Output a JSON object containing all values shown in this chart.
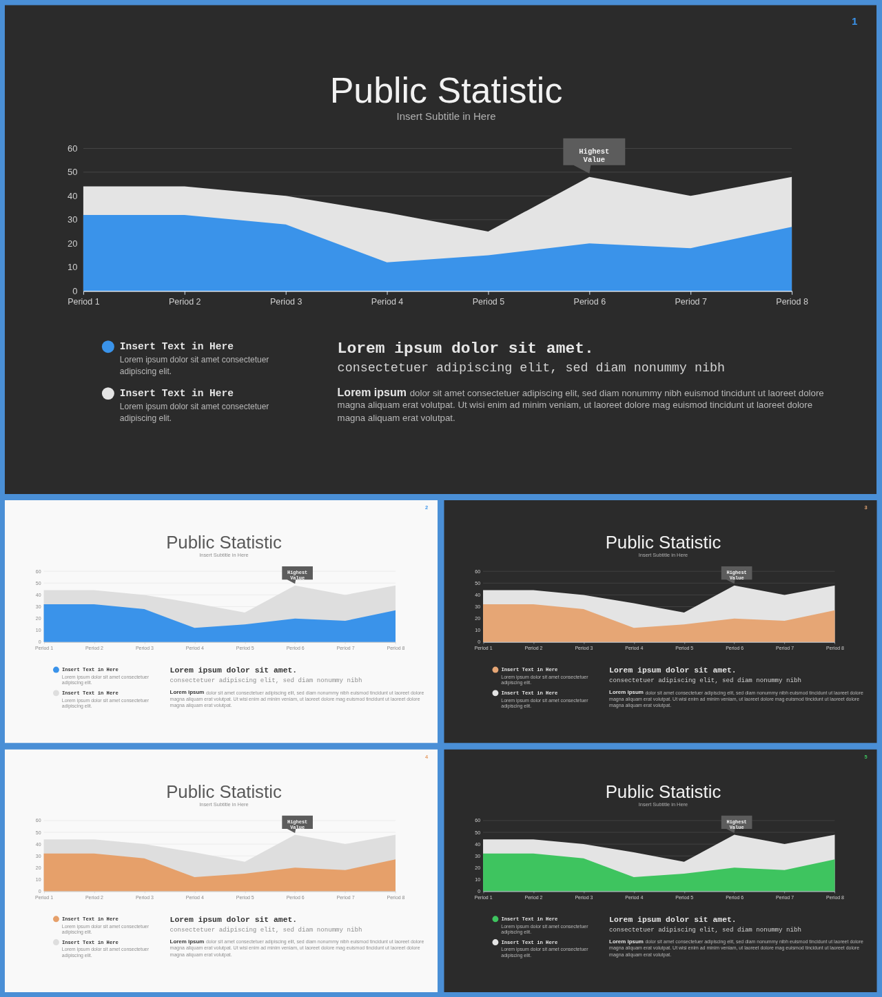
{
  "chart_data": [
    {
      "type": "area",
      "title": "Public Statistic",
      "subtitle": "Insert Subtitle in Here",
      "categories": [
        "Period 1",
        "Period 2",
        "Period 3",
        "Period 4",
        "Period 5",
        "Period 6",
        "Period 7",
        "Period 8"
      ],
      "series": [
        {
          "name": "Insert Text in Here",
          "color": "#3a93ea",
          "values": [
            32,
            32,
            28,
            12,
            15,
            20,
            18,
            27
          ]
        },
        {
          "name": "Insert Text in Here",
          "color": "#e4e4e4",
          "values": [
            44,
            44,
            40,
            33,
            25,
            48,
            40,
            48
          ]
        }
      ],
      "ylim": [
        0,
        60
      ],
      "yticks": [
        0,
        10,
        20,
        30,
        40,
        50,
        60
      ],
      "grid": "y",
      "legend": "bottom left",
      "annotations": [
        {
          "text": "Highest Value",
          "x": "Period 6",
          "y": 48
        },
        "1",
        "Lorem ipsum dolor sit amet consectetuer\nadipiscing elit.",
        "Lorem ipsum dolor sit amet consectetuer\nadipiscing elit.",
        "Lorem ipsum dolor sit amet.",
        "consectetuer adipiscing elit, sed diam nonummy nibh",
        "Lorem ipsum dolor sit amet consectetuer adipiscing elit, sed diam nonummy nibh euismod tincidunt ut laoreet dolore\nmagna aliquam erat volutpat. Ut wisi enim ad minim veniam, ut laoreet dolore mag euismod tincidunt ut laoreet dolore\nmagna aliquam erat volutpat."
      ]
    },
    {
      "type": "area",
      "title": "Public Statistic",
      "subtitle": "Insert Subtitle in Here",
      "categories": [
        "Period 1",
        "Period 2",
        "Period 3",
        "Period 4",
        "Period 5",
        "Period 6",
        "Period 7",
        "Period 8"
      ],
      "series": [
        {
          "name": "Insert Text in Here",
          "color": "#3a93ea",
          "values": [
            32,
            32,
            28,
            12,
            15,
            20,
            18,
            27
          ]
        },
        {
          "name": "Insert Text in Here",
          "color": "#dedede",
          "values": [
            44,
            44,
            40,
            33,
            25,
            48,
            40,
            48
          ]
        }
      ],
      "ylim": [
        0,
        60
      ],
      "yticks": [
        0,
        10,
        20,
        30,
        40,
        50,
        60
      ],
      "grid": "y",
      "legend": "bottom left",
      "annotations": [
        {
          "text": "Highest Value",
          "x": "Period 6",
          "y": 48
        },
        "2",
        "Lorem ipsum dolor sit amet consectetuer\nadipiscing elit.",
        "Lorem ipsum dolor sit amet consectetuer\nadipiscing elit.",
        "Lorem ipsum dolor sit amet.",
        "consectetuer adipiscing elit, sed diam nonummy nibh",
        "Lorem ipsum dolor sit amet consectetuer adipiscing elit, sed diam nonummy nibh euismod tincidunt ut laoreet dolore\nmagna aliquam erat volutpat. Ut wisi enim ad minim veniam, ut laoreet dolore mag euismod tincidunt ut laoreet dolore\nmagna aliquam erat volutpat."
      ]
    },
    {
      "type": "area",
      "title": "Public Statistic",
      "subtitle": "Insert Subtitle in Here",
      "categories": [
        "Period 1",
        "Period 2",
        "Period 3",
        "Period 4",
        "Period 5",
        "Period 6",
        "Period 7",
        "Period 8"
      ],
      "series": [
        {
          "name": "Insert Text in Here",
          "color": "#e6a675",
          "values": [
            32,
            32,
            28,
            12,
            15,
            20,
            18,
            27
          ]
        },
        {
          "name": "Insert Text in Here",
          "color": "#e4e4e4",
          "values": [
            44,
            44,
            40,
            33,
            25,
            48,
            40,
            48
          ]
        }
      ],
      "ylim": [
        0,
        60
      ],
      "yticks": [
        0,
        10,
        20,
        30,
        40,
        50,
        60
      ],
      "grid": "y",
      "legend": "bottom left",
      "annotations": [
        {
          "text": "Highest Value",
          "x": "Period 6",
          "y": 48
        },
        "3",
        "Lorem ipsum dolor sit amet consectetuer\nadipiscing elit.",
        "Lorem ipsum dolor sit amet consectetuer\nadipiscing elit.",
        "Lorem ipsum dolor sit amet.",
        "consectetuer adipiscing elit, sed diam nonummy nibh",
        "Lorem ipsum dolor sit amet consectetuer adipiscing elit, sed diam nonummy nibh euismod tincidunt ut laoreet dolore\nmagna aliquam erat volutpat. Ut wisi enim ad minim veniam, ut laoreet dolore mag euismod tincidunt ut laoreet dolore\nmagna aliquam erat volutpat."
      ]
    },
    {
      "type": "area",
      "title": "Public Statistic",
      "subtitle": "Insert Subtitle in Here",
      "categories": [
        "Period 1",
        "Period 2",
        "Period 3",
        "Period 4",
        "Period 5",
        "Period 6",
        "Period 7",
        "Period 8"
      ],
      "series": [
        {
          "name": "Insert Text in Here",
          "color": "#e6a06a",
          "values": [
            32,
            32,
            28,
            12,
            15,
            20,
            18,
            27
          ]
        },
        {
          "name": "Insert Text in Here",
          "color": "#dedede",
          "values": [
            44,
            44,
            40,
            33,
            25,
            48,
            40,
            48
          ]
        }
      ],
      "ylim": [
        0,
        60
      ],
      "yticks": [
        0,
        10,
        20,
        30,
        40,
        50,
        60
      ],
      "grid": "y",
      "legend": "bottom left",
      "annotations": [
        {
          "text": "Highest Value",
          "x": "Period 6",
          "y": 48
        },
        "4",
        "Lorem ipsum dolor sit amet consectetuer\nadipiscing elit.",
        "Lorem ipsum dolor sit amet consectetuer\nadipiscing elit.",
        "Lorem ipsum dolor sit amet.",
        "consectetuer adipiscing elit, sed diam nonummy nibh",
        "Lorem ipsum dolor sit amet consectetuer adipiscing elit, sed diam nonummy nibh euismod tincidunt ut laoreet dolore\nmagna aliquam erat volutpat. Ut wisi enim ad minim veniam, ut laoreet dolore mag euismod tincidunt ut laoreet dolore\nmagna aliquam erat volutpat."
      ]
    },
    {
      "type": "area",
      "title": "Public Statistic",
      "subtitle": "Insert Subtitle in Here",
      "categories": [
        "Period 1",
        "Period 2",
        "Period 3",
        "Period 4",
        "Period 5",
        "Period 6",
        "Period 7",
        "Period 8"
      ],
      "series": [
        {
          "name": "Insert Text in Here",
          "color": "#3ec45f",
          "values": [
            32,
            32,
            28,
            12,
            15,
            20,
            18,
            27
          ]
        },
        {
          "name": "Insert Text in Here",
          "color": "#e4e4e4",
          "values": [
            44,
            44,
            40,
            33,
            25,
            48,
            40,
            48
          ]
        }
      ],
      "ylim": [
        0,
        60
      ],
      "yticks": [
        0,
        10,
        20,
        30,
        40,
        50,
        60
      ],
      "grid": "y",
      "legend": "bottom left",
      "annotations": [
        {
          "text": "Highest Value",
          "x": "Period 6",
          "y": 48
        },
        "5",
        "Lorem ipsum dolor sit amet consectetuer\nadipiscing elit.",
        "Lorem ipsum dolor sit amet consectetuer\nadipiscing elit.",
        "Lorem ipsum dolor sit amet.",
        "consectetuer adipiscing elit, sed diam nonummy nibh",
        "Lorem ipsum dolor sit amet consectetuer adipiscing elit, sed diam nonummy nibh euismod tincidunt ut laoreet dolore\nmagna aliquam erat volutpat. Ut wisi enim ad minim veniam, ut laoreet dolore mag euismod tincidunt ut laoreet dolore\nmagna aliquam erat volutpat."
      ]
    }
  ]
}
